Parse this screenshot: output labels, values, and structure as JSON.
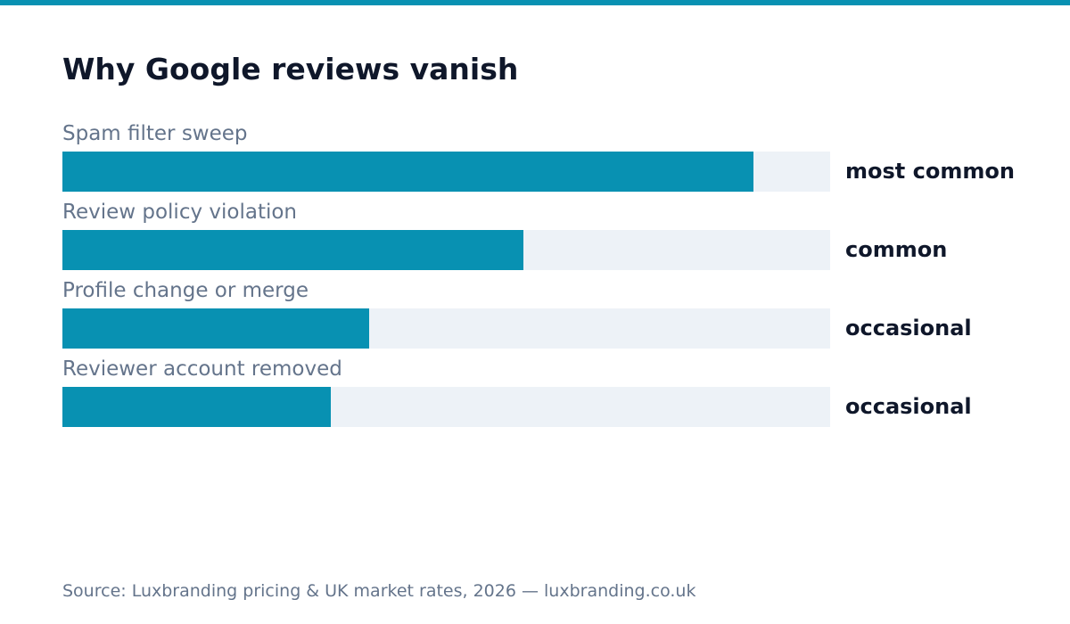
{
  "colors": {
    "accent": "#0891b2",
    "track": "#edf2f7",
    "title": "#0f172a",
    "muted": "#64748b"
  },
  "chart_data": {
    "type": "bar",
    "orientation": "horizontal",
    "title": "Why Google reviews vanish",
    "xlabel": "",
    "ylabel": "",
    "grid": false,
    "xlim": [
      0,
      1
    ],
    "categories": [
      "Spam filter sweep",
      "Review policy violation",
      "Profile change or merge",
      "Reviewer account removed"
    ],
    "values": [
      0.9,
      0.6,
      0.4,
      0.35
    ],
    "value_labels": [
      "most common",
      "common",
      "occasional",
      "occasional"
    ]
  },
  "footer": {
    "source": "Source: Luxbranding pricing & UK market rates, 2026 — luxbranding.co.uk"
  }
}
